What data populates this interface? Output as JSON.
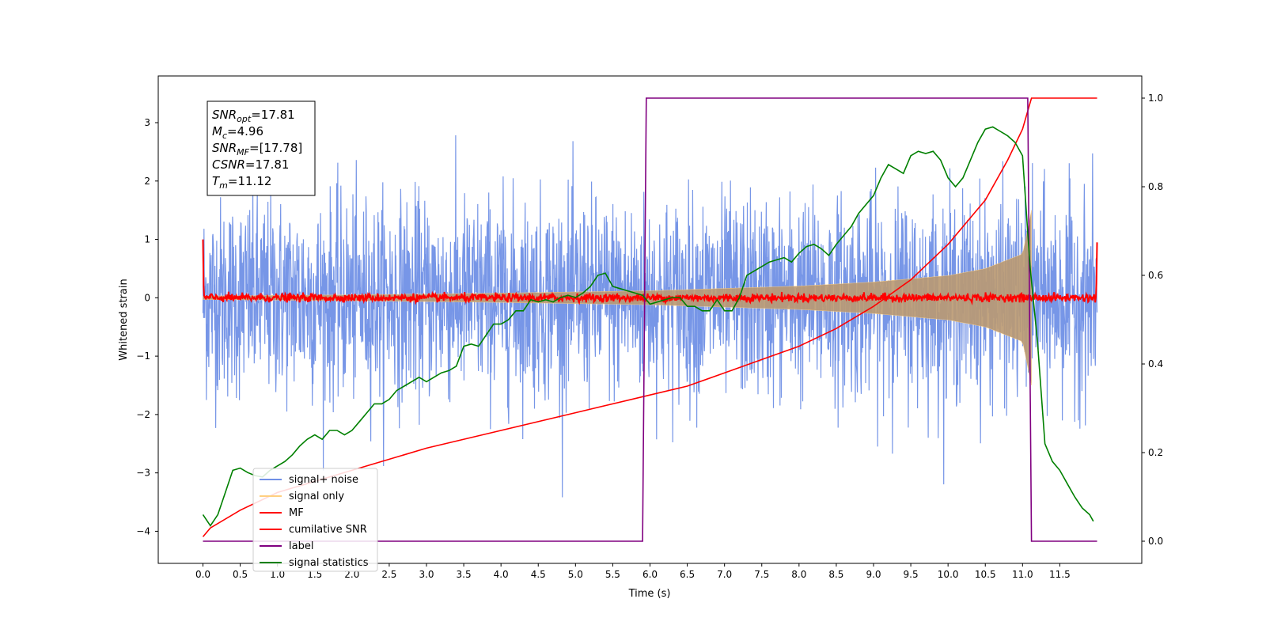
{
  "chart_data": {
    "type": "line",
    "xlabel": "Time (s)",
    "ylabel": "Whitened strain",
    "xlim": [
      -0.6,
      12.6
    ],
    "ylim": [
      -4.55,
      3.8
    ],
    "y2lim": [
      -0.05,
      1.05
    ],
    "x_ticks": [
      "0.0",
      "0.5",
      "1.0",
      "1.5",
      "2.0",
      "2.5",
      "3.0",
      "3.5",
      "4.0",
      "4.5",
      "5.0",
      "5.5",
      "6.0",
      "6.5",
      "7.0",
      "7.5",
      "8.0",
      "8.5",
      "9.0",
      "9.5",
      "10.0",
      "10.5",
      "11.0",
      "11.5"
    ],
    "x_tick_values": [
      0,
      0.5,
      1,
      1.5,
      2,
      2.5,
      3,
      3.5,
      4,
      4.5,
      5,
      5.5,
      6,
      6.5,
      7,
      7.5,
      8,
      8.5,
      9,
      9.5,
      10,
      10.5,
      11,
      11.5
    ],
    "y_ticks": [
      "−4",
      "−3",
      "−2",
      "−1",
      "0",
      "1",
      "2",
      "3"
    ],
    "y_tick_values": [
      -4,
      -3,
      -2,
      -1,
      0,
      1,
      2,
      3
    ],
    "y2_ticks": [
      "0.0",
      "0.2",
      "0.4",
      "0.6",
      "0.8",
      "1.0"
    ],
    "y2_tick_values": [
      0,
      0.2,
      0.4,
      0.6,
      0.8,
      1.0
    ],
    "grid": false,
    "legend_position": "lower-left",
    "annotation": [
      {
        "sym": "SNR",
        "sub": "opt",
        "val": "=17.81"
      },
      {
        "sym": "M",
        "sub": "c",
        "val": "=4.96"
      },
      {
        "sym": "SNR",
        "sub": "MF",
        "val": "=[17.78]"
      },
      {
        "sym": "CSNR",
        "sub": "",
        "val": "=17.81"
      },
      {
        "sym": "T",
        "sub": "m",
        "val": "=11.12"
      }
    ],
    "series": [
      {
        "name": "signal+ noise",
        "color": "#7090e6",
        "axis": "left",
        "description_values": {
          "x_range": [
            0,
            12.0
          ],
          "noise_sigma": 0.85,
          "typical_extremes": [
            -3.7,
            3.45
          ]
        }
      },
      {
        "name": "signal only",
        "color": "#ffcf80",
        "axis": "left",
        "fill_color": "#bb9a72",
        "envelope": {
          "x": [
            0,
            2,
            4,
            6,
            8,
            9,
            10,
            10.5,
            11,
            11.12
          ],
          "amp": [
            0.03,
            0.05,
            0.08,
            0.12,
            0.2,
            0.27,
            0.38,
            0.5,
            0.75,
            1.5
          ]
        }
      },
      {
        "name": "MF",
        "color": "#ff0000",
        "axis": "left",
        "description_values": {
          "x_range": [
            0,
            12.0
          ],
          "level": 0.0,
          "noise_amp": 0.06,
          "start_spike": 1.0,
          "end_spike": 0.95
        }
      },
      {
        "name": "cumilative SNR",
        "color": "#ff0000",
        "axis": "right",
        "x": [
          0.0,
          0.1,
          0.5,
          1.0,
          2.0,
          3.0,
          4.0,
          5.0,
          6.0,
          6.5,
          7.0,
          7.5,
          8.0,
          8.5,
          9.0,
          9.5,
          10.0,
          10.5,
          10.8,
          11.0,
          11.12,
          11.5,
          12.0
        ],
        "y": [
          0.01,
          0.03,
          0.07,
          0.11,
          0.16,
          0.21,
          0.25,
          0.29,
          0.33,
          0.35,
          0.38,
          0.41,
          0.44,
          0.48,
          0.53,
          0.59,
          0.67,
          0.77,
          0.86,
          0.93,
          1.0,
          1.0,
          1.0
        ]
      },
      {
        "name": "label",
        "color": "#800080",
        "axis": "right",
        "x": [
          0.0,
          5.9,
          5.95,
          11.07,
          11.12,
          12.0
        ],
        "y": [
          0.0,
          0.0,
          1.0,
          1.0,
          0.0,
          0.0
        ]
      },
      {
        "name": "signal statistics",
        "color": "#008000",
        "axis": "right",
        "x": [
          0.0,
          0.1,
          0.2,
          0.3,
          0.4,
          0.5,
          0.6,
          0.7,
          0.8,
          0.9,
          1.0,
          1.1,
          1.2,
          1.3,
          1.4,
          1.5,
          1.6,
          1.7,
          1.8,
          1.9,
          2.0,
          2.1,
          2.2,
          2.3,
          2.4,
          2.5,
          2.6,
          2.7,
          2.8,
          2.9,
          3.0,
          3.1,
          3.2,
          3.3,
          3.4,
          3.5,
          3.6,
          3.7,
          3.8,
          3.9,
          4.0,
          4.1,
          4.2,
          4.3,
          4.4,
          4.5,
          4.6,
          4.7,
          4.8,
          4.9,
          5.0,
          5.1,
          5.2,
          5.3,
          5.4,
          5.5,
          5.6,
          5.7,
          5.8,
          5.9,
          6.0,
          6.1,
          6.2,
          6.3,
          6.4,
          6.5,
          6.6,
          6.7,
          6.8,
          6.9,
          7.0,
          7.1,
          7.2,
          7.3,
          7.4,
          7.5,
          7.6,
          7.7,
          7.8,
          7.9,
          8.0,
          8.1,
          8.2,
          8.3,
          8.4,
          8.5,
          8.6,
          8.7,
          8.8,
          8.9,
          9.0,
          9.1,
          9.2,
          9.3,
          9.4,
          9.5,
          9.6,
          9.7,
          9.8,
          9.9,
          10.0,
          10.1,
          10.2,
          10.3,
          10.4,
          10.5,
          10.6,
          10.7,
          10.8,
          10.9,
          11.0,
          11.1,
          11.2,
          11.3,
          11.4,
          11.5,
          11.6,
          11.7,
          11.8,
          11.9,
          11.95
        ],
        "y": [
          0.06,
          0.035,
          0.06,
          0.11,
          0.16,
          0.165,
          0.155,
          0.148,
          0.145,
          0.16,
          0.17,
          0.18,
          0.195,
          0.215,
          0.23,
          0.24,
          0.23,
          0.25,
          0.25,
          0.24,
          0.25,
          0.27,
          0.29,
          0.31,
          0.31,
          0.32,
          0.34,
          0.35,
          0.36,
          0.37,
          0.36,
          0.37,
          0.38,
          0.385,
          0.395,
          0.44,
          0.445,
          0.44,
          0.465,
          0.49,
          0.49,
          0.5,
          0.52,
          0.52,
          0.545,
          0.54,
          0.545,
          0.54,
          0.55,
          0.555,
          0.55,
          0.56,
          0.575,
          0.6,
          0.605,
          0.575,
          0.57,
          0.565,
          0.56,
          0.555,
          0.535,
          0.54,
          0.545,
          0.55,
          0.55,
          0.53,
          0.53,
          0.52,
          0.52,
          0.545,
          0.52,
          0.52,
          0.55,
          0.6,
          0.61,
          0.62,
          0.63,
          0.635,
          0.64,
          0.63,
          0.65,
          0.665,
          0.67,
          0.66,
          0.645,
          0.67,
          0.69,
          0.71,
          0.74,
          0.76,
          0.78,
          0.82,
          0.85,
          0.84,
          0.83,
          0.87,
          0.88,
          0.875,
          0.88,
          0.86,
          0.82,
          0.8,
          0.82,
          0.86,
          0.9,
          0.93,
          0.935,
          0.925,
          0.915,
          0.9,
          0.87,
          0.62,
          0.45,
          0.22,
          0.18,
          0.16,
          0.13,
          0.1,
          0.075,
          0.06,
          0.045
        ]
      }
    ]
  }
}
